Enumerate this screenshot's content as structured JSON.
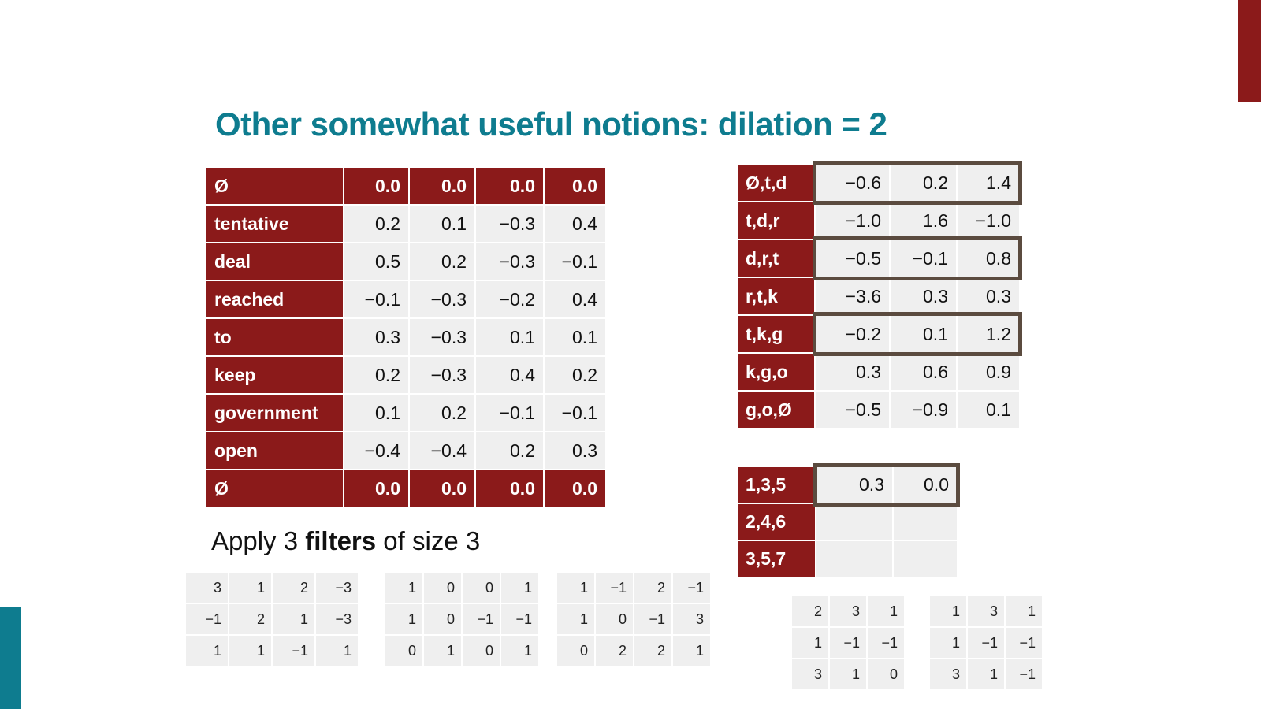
{
  "title": "Other somewhat useful notions: dilation = 2",
  "main_table": {
    "rows": [
      [
        "Ø",
        "0.0",
        "0.0",
        "0.0",
        "0.0"
      ],
      [
        "tentative",
        "0.2",
        "0.1",
        "−0.3",
        "0.4"
      ],
      [
        "deal",
        "0.5",
        "0.2",
        "−0.3",
        "−0.1"
      ],
      [
        "reached",
        "−0.1",
        "−0.3",
        "−0.2",
        "0.4"
      ],
      [
        "to",
        "0.3",
        "−0.3",
        "0.1",
        "0.1"
      ],
      [
        "keep",
        "0.2",
        "−0.3",
        "0.4",
        "0.2"
      ],
      [
        "government",
        "0.1",
        "0.2",
        "−0.1",
        "−0.1"
      ],
      [
        "open",
        "−0.4",
        "−0.4",
        "0.2",
        "0.3"
      ],
      [
        "Ø",
        "0.0",
        "0.0",
        "0.0",
        "0.0"
      ]
    ]
  },
  "caption": {
    "before": "Apply 3",
    "bold": "filters",
    "after": "of size 3"
  },
  "filters": [
    [
      [
        "3",
        "1",
        "2",
        "−3"
      ],
      [
        "−1",
        "2",
        "1",
        "−3"
      ],
      [
        "1",
        "1",
        "−1",
        "1"
      ]
    ],
    [
      [
        "1",
        "0",
        "0",
        "1"
      ],
      [
        "1",
        "0",
        "−1",
        "−1"
      ],
      [
        "0",
        "1",
        "0",
        "1"
      ]
    ],
    [
      [
        "1",
        "−1",
        "2",
        "−1"
      ],
      [
        "1",
        "0",
        "−1",
        "3"
      ],
      [
        "0",
        "2",
        "2",
        "1"
      ]
    ]
  ],
  "conv_table": {
    "rows": [
      [
        "Ø,t,d",
        "−0.6",
        "0.2",
        "1.4"
      ],
      [
        "t,d,r",
        "−1.0",
        "1.6",
        "−1.0"
      ],
      [
        "d,r,t",
        "−0.5",
        "−0.1",
        "0.8"
      ],
      [
        "r,t,k",
        "−3.6",
        "0.3",
        "0.3"
      ],
      [
        "t,k,g",
        "−0.2",
        "0.1",
        "1.2"
      ],
      [
        "k,g,o",
        "0.3",
        "0.6",
        "0.9"
      ],
      [
        "g,o,Ø",
        "−0.5",
        "−0.9",
        "0.1"
      ]
    ]
  },
  "dilated_table": {
    "rows": [
      [
        "1,3,5",
        "0.3",
        "0.0"
      ],
      [
        "2,4,6"
      ],
      [
        "3,5,7"
      ]
    ]
  },
  "dilated_filters": [
    [
      [
        "2",
        "3",
        "1"
      ],
      [
        "1",
        "−1",
        "−1"
      ],
      [
        "3",
        "1",
        "0"
      ]
    ],
    [
      [
        "1",
        "3",
        "1"
      ],
      [
        "1",
        "−1",
        "−1"
      ],
      [
        "3",
        "1",
        "−1"
      ]
    ]
  ]
}
